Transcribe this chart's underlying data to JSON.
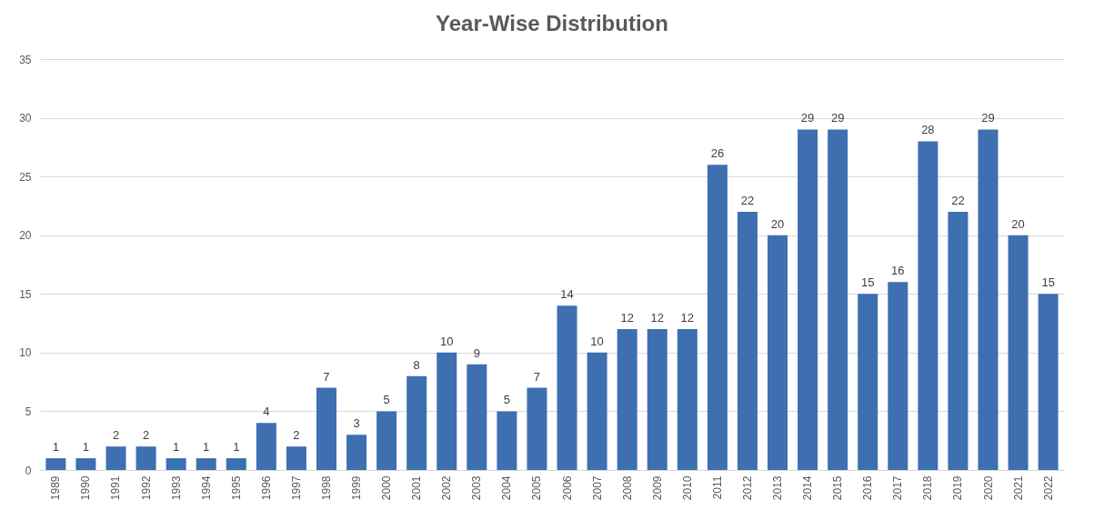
{
  "chart_data": {
    "type": "bar",
    "title": "Year-Wise Distribution",
    "categories": [
      "1989",
      "1990",
      "1991",
      "1992",
      "1993",
      "1994",
      "1995",
      "1996",
      "1997",
      "1998",
      "1999",
      "2000",
      "2001",
      "2002",
      "2003",
      "2004",
      "2005",
      "2006",
      "2007",
      "2008",
      "2009",
      "2010",
      "2011",
      "2012",
      "2013",
      "2014",
      "2015",
      "2016",
      "2017",
      "2018",
      "2019",
      "2020",
      "2021",
      "2022"
    ],
    "values": [
      1,
      1,
      2,
      2,
      1,
      1,
      1,
      4,
      2,
      7,
      3,
      5,
      8,
      10,
      9,
      5,
      7,
      14,
      10,
      12,
      12,
      12,
      26,
      22,
      20,
      29,
      29,
      15,
      16,
      28,
      22,
      29,
      20,
      15
    ],
    "color": "#3e6fb0",
    "ylim": [
      0,
      35
    ],
    "yticks": [
      0,
      5,
      10,
      15,
      20,
      25,
      30,
      35
    ],
    "grid": "y",
    "data_labels": true
  }
}
